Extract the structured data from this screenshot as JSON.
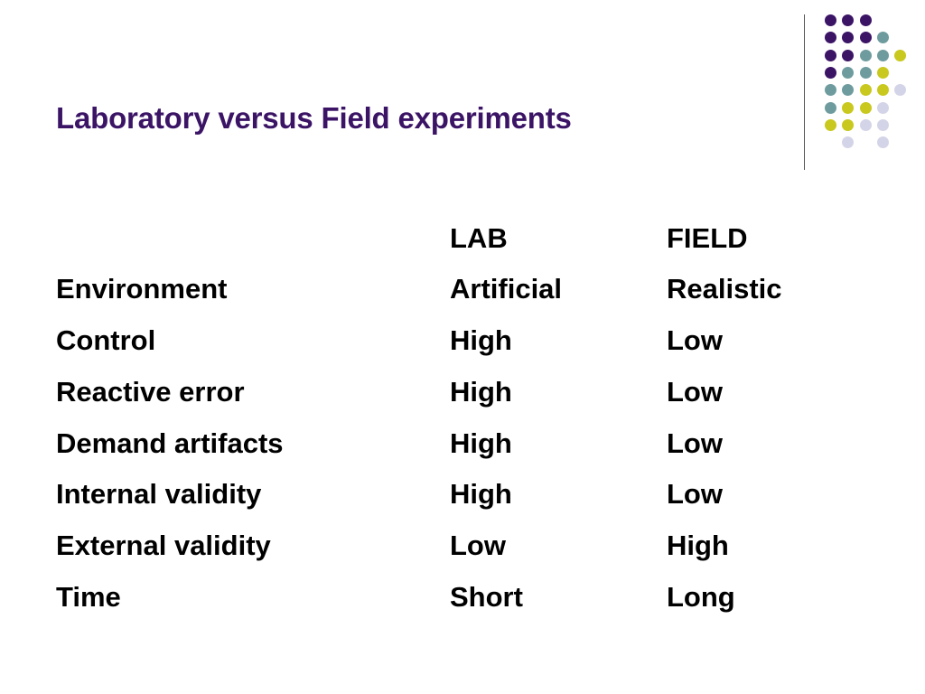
{
  "slide": {
    "title": "Laboratory versus Field experiments",
    "title_color": "#3B1466"
  },
  "decoration": {
    "palette": {
      "purple": "#3B1466",
      "teal": "#6E9C9E",
      "yellow": "#C8C81E",
      "lavender": "#D4D4E8"
    },
    "grid": [
      [
        "purple",
        "purple",
        "purple",
        "",
        "",
        ""
      ],
      [
        "purple",
        "purple",
        "purple",
        "teal",
        "",
        ""
      ],
      [
        "purple",
        "purple",
        "teal",
        "teal",
        "yellow",
        ""
      ],
      [
        "purple",
        "teal",
        "teal",
        "yellow",
        "",
        ""
      ],
      [
        "teal",
        "teal",
        "yellow",
        "yellow",
        "lavender",
        ""
      ],
      [
        "teal",
        "yellow",
        "yellow",
        "lavender",
        "",
        ""
      ],
      [
        "yellow",
        "yellow",
        "lavender",
        "lavender",
        "",
        ""
      ],
      [
        "",
        "lavender",
        "",
        "lavender",
        "",
        ""
      ]
    ]
  },
  "table": {
    "headers": [
      "",
      "LAB",
      "FIELD"
    ],
    "rows": [
      [
        "Environment",
        "Artificial",
        "Realistic"
      ],
      [
        "Control",
        "High",
        "Low"
      ],
      [
        "Reactive error",
        "High",
        "Low"
      ],
      [
        "Demand artifacts",
        "High",
        "Low"
      ],
      [
        "Internal validity",
        "High",
        "Low"
      ],
      [
        "External validity",
        "Low",
        "High"
      ],
      [
        "Time",
        "Short",
        "Long"
      ]
    ]
  }
}
